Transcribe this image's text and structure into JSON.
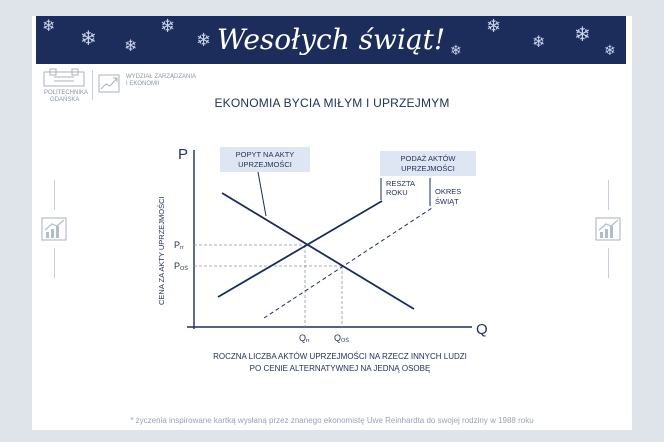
{
  "banner": {
    "title": "Wesołych świąt!"
  },
  "logo": {
    "university_line1": "POLITECHNIKA",
    "university_line2": "GDAŃSKA",
    "faculty_line1": "WYDZIAŁ ZARZĄDZANIA",
    "faculty_line2": "I EKONOMII"
  },
  "main": {
    "title": "EKONOMIA BYCIA MIŁYM I UPRZEJMYM"
  },
  "diagram": {
    "p_axis_label": "P",
    "q_axis_label": "Q",
    "y_caption": "CENA ZA AKTY UPRZEJMOŚCI",
    "demand_line1": "POPYT NA AKTY",
    "demand_line2": "UPRZEJMOŚCI",
    "supply_line1": "PODAŻ AKTÓW",
    "supply_line2": "UPRZEJMOŚCI",
    "rest_line1": "RESZTA",
    "rest_line2": "ROKU",
    "holiday_line1": "OKRES",
    "holiday_line2": "ŚWIĄT",
    "p_rr_main": "P",
    "p_rr_sub": "rr",
    "p_os_main": "P",
    "p_os_sub": "OŚ",
    "q_rr_main": "Q",
    "q_rr_sub": "rr",
    "q_os_main": "Q",
    "q_os_sub": "OŚ"
  },
  "x_caption": {
    "line1": "ROCZNA LICZBA AKTÓW UPRZEJMOŚCI NA RZECZ INNYCH LUDZI",
    "line2": "PO CENIE ALTERNATYWNEJ NA JEDNĄ OSOBĘ"
  },
  "footer": {
    "note": "* życzenia inspirowane kartką wysłaną przez znanego ekonomistę Uwe Reinhardta do swojej rodziny w 1988 roku"
  },
  "colors": {
    "navy": "#1c2d5c",
    "label_bg": "#dde6f2",
    "text": "#243259"
  }
}
